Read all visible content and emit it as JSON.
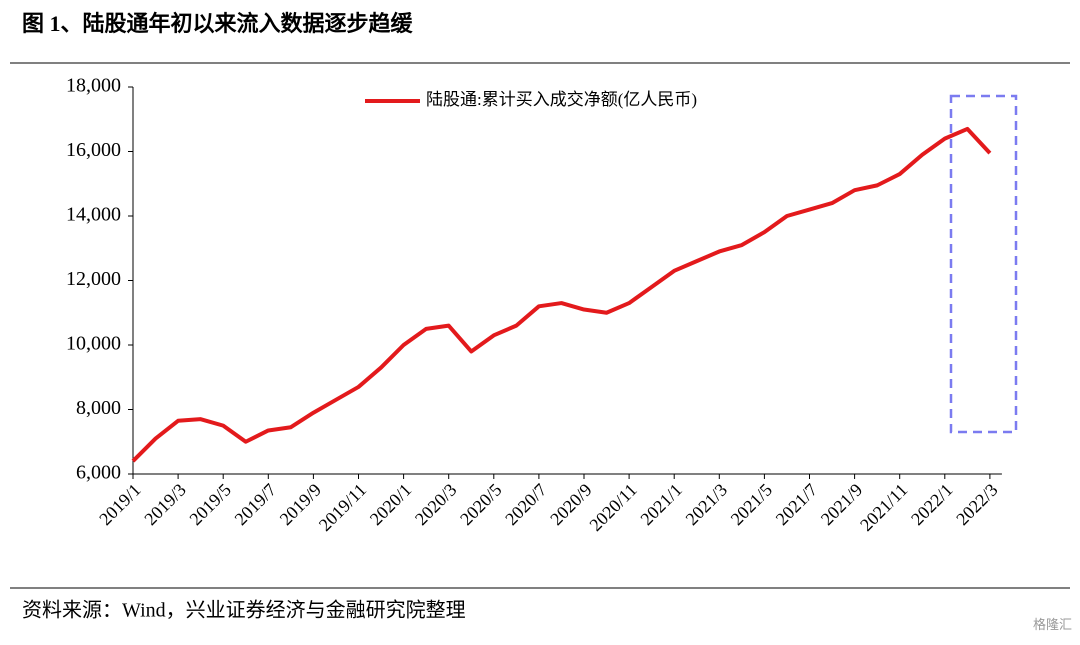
{
  "header": {
    "title": "图 1、陆股通年初以来流入数据逐步趋缓"
  },
  "chart_data": {
    "type": "line",
    "categories": [
      "2019/1",
      null,
      "2019/3",
      null,
      "2019/5",
      null,
      "2019/7",
      null,
      "2019/9",
      null,
      "2019/11",
      null,
      "2020/1",
      null,
      "2020/3",
      null,
      "2020/5",
      null,
      "2020/7",
      null,
      "2020/9",
      null,
      "2020/11",
      null,
      "2021/1",
      null,
      "2021/3",
      null,
      "2021/5",
      null,
      "2021/7",
      null,
      "2021/9",
      null,
      "2021/11",
      null,
      "2022/1",
      null,
      "2022/3"
    ],
    "series": [
      {
        "name": "陆股通:累计买入成交净额(亿人民币)",
        "color": "#e31a1c",
        "values": [
          6400,
          7100,
          7650,
          7700,
          7500,
          7000,
          7350,
          7450,
          7900,
          8300,
          8700,
          9300,
          10000,
          10500,
          10600,
          9800,
          10300,
          10600,
          11200,
          11300,
          11100,
          11000,
          11300,
          11800,
          12300,
          12600,
          12900,
          13100,
          13500,
          14000,
          14200,
          14400,
          14800,
          14950,
          15300,
          15900,
          16400,
          16700,
          15950
        ]
      }
    ],
    "ylim": [
      6000,
      18000
    ],
    "yticks": [
      {
        "value": 6000,
        "label": "6,000"
      },
      {
        "value": 8000,
        "label": "8,000"
      },
      {
        "value": 10000,
        "label": "10,000"
      },
      {
        "value": 12000,
        "label": "12,000"
      },
      {
        "value": 14000,
        "label": "14,000"
      },
      {
        "value": 16000,
        "label": "16,000"
      },
      {
        "value": 18000,
        "label": "18,000"
      }
    ]
  },
  "footer": {
    "source": "资料来源：Wind，兴业证券经济与金融研究院整理",
    "watermark": "格隆汇"
  }
}
